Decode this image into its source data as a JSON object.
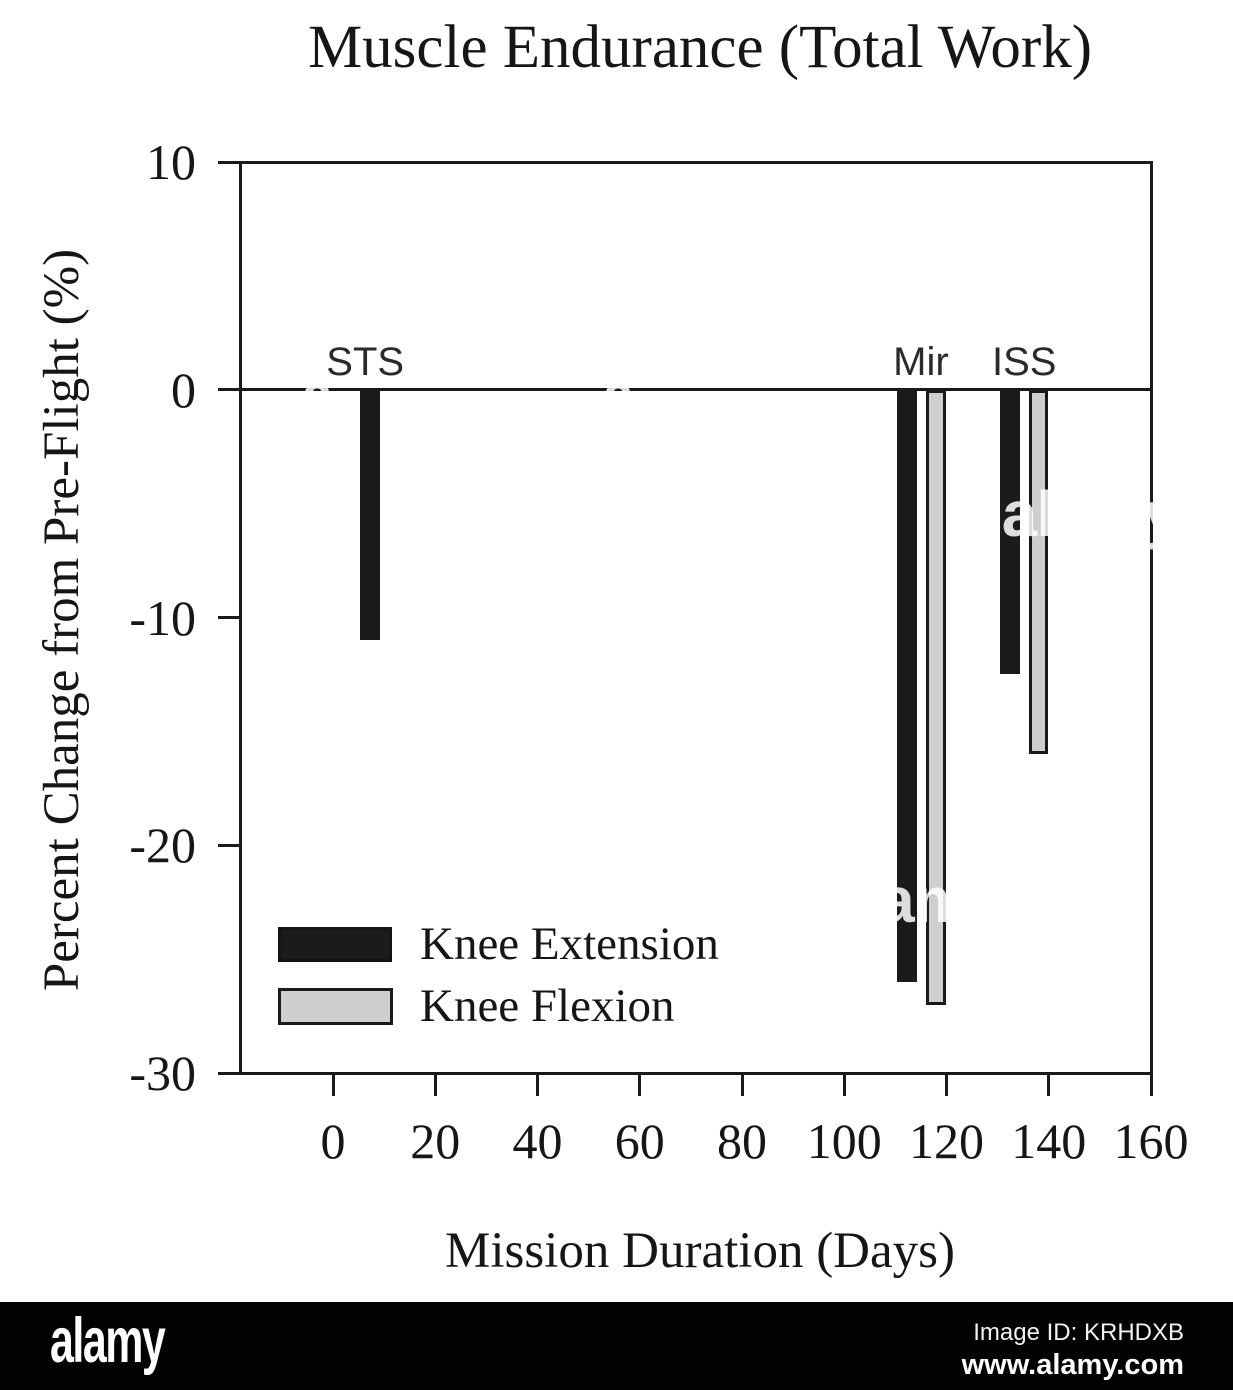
{
  "title": "Muscle Endurance (Total Work)",
  "watermark_text": "alamy",
  "footer": {
    "brand": "alamy",
    "image_id": "Image ID: KRHDXB",
    "url": "www.alamy.com"
  },
  "chart_data": {
    "type": "bar",
    "title": "Muscle Endurance (Total Work)",
    "xlabel": "Mission Duration (Days)",
    "ylabel": "Percent Change from Pre-Flight (%)",
    "x_axis": {
      "min": 0,
      "max": 160,
      "ticks": [
        0,
        20,
        40,
        60,
        80,
        100,
        120,
        140,
        160
      ]
    },
    "y_axis": {
      "min": -30,
      "max": 10,
      "ticks": [
        10,
        0,
        -10,
        -20,
        -30
      ]
    },
    "grid": false,
    "legend_position": "inside-bottom-left",
    "bar_width_days": 3.9,
    "series": [
      {
        "name": "Knee Extension",
        "color": "#1b1b1b"
      },
      {
        "name": "Knee Flexion",
        "color": "#cecece"
      }
    ],
    "groups": [
      {
        "label": "STS",
        "label_day": 6.3,
        "bars": [
          {
            "series": 0,
            "day": 7.2,
            "value": -11
          }
        ]
      },
      {
        "label": "Mir",
        "label_day": 115,
        "bars": [
          {
            "series": 0,
            "day": 112.2,
            "value": -26
          },
          {
            "series": 1,
            "day": 117.9,
            "value": -27
          }
        ]
      },
      {
        "label": "ISS",
        "label_day": 135.2,
        "bars": [
          {
            "series": 0,
            "day": 132.4,
            "value": -12.5
          },
          {
            "series": 1,
            "day": 138,
            "value": -16
          }
        ]
      }
    ]
  }
}
